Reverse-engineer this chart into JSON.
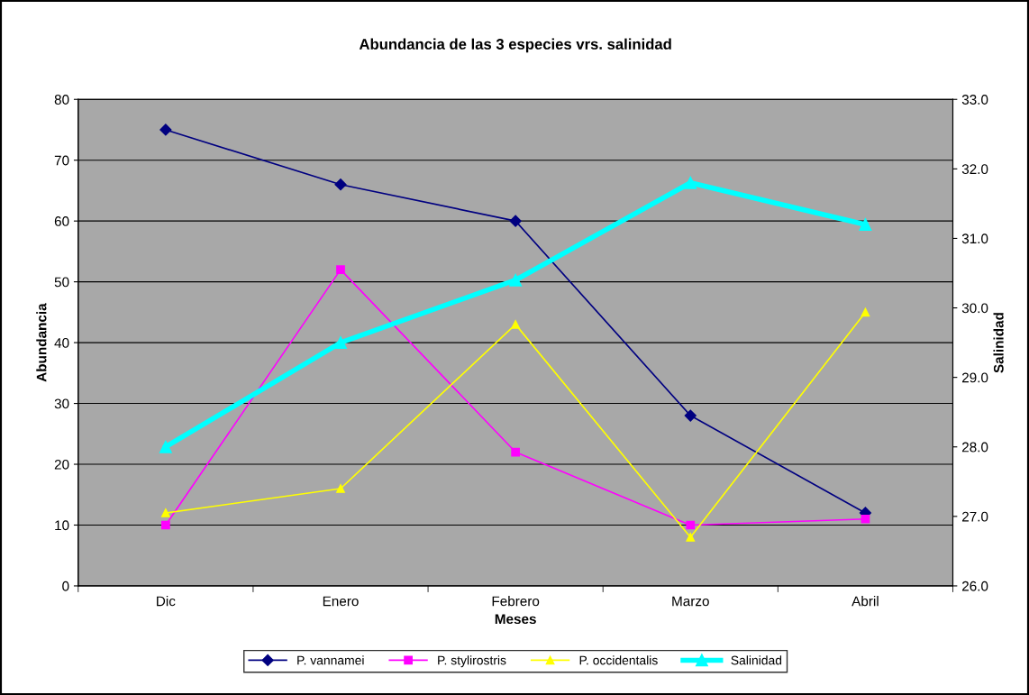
{
  "chart_data": {
    "type": "line",
    "title": "Abundancia de las 3 especies vrs. salinidad",
    "xlabel": "Meses",
    "ylabel": "Abundancia",
    "y2label": "Salinidad",
    "categories": [
      "Dic",
      "Enero",
      "Febrero",
      "Marzo",
      "Abril"
    ],
    "series": [
      {
        "name": "P. vannamei",
        "color": "#000080",
        "marker": "diamond",
        "values": [
          75,
          66,
          60,
          28,
          12
        ]
      },
      {
        "name": "P. stylirostris",
        "color": "#ff00ff",
        "marker": "square",
        "values": [
          10,
          52,
          22,
          10,
          11
        ]
      },
      {
        "name": "P. occidentalis",
        "color": "#ffff00",
        "marker": "triangle",
        "values": [
          12,
          16,
          43,
          8,
          45
        ]
      },
      {
        "name": "Salinidad",
        "color": "#00ffff",
        "marker": "triangle",
        "axis": "y2",
        "values": [
          28.0,
          29.5,
          30.4,
          31.8,
          31.2
        ]
      }
    ],
    "ylim": [
      0,
      80
    ],
    "yticks": [
      0,
      10,
      20,
      30,
      40,
      50,
      60,
      70,
      80
    ],
    "y2lim": [
      26,
      33
    ],
    "y2ticks": [
      {
        "value": 26,
        "label": "26.0"
      },
      {
        "value": 27,
        "label": "27.0"
      },
      {
        "value": 28,
        "label": "28.0"
      },
      {
        "value": 29,
        "label": "29.0"
      },
      {
        "value": 30,
        "label": "30.0"
      },
      {
        "value": 31,
        "label": "31.0"
      },
      {
        "value": 32,
        "label": "32.0"
      },
      {
        "value": 33,
        "label": "33.0"
      }
    ],
    "grid": "y",
    "legend": "bottom"
  }
}
